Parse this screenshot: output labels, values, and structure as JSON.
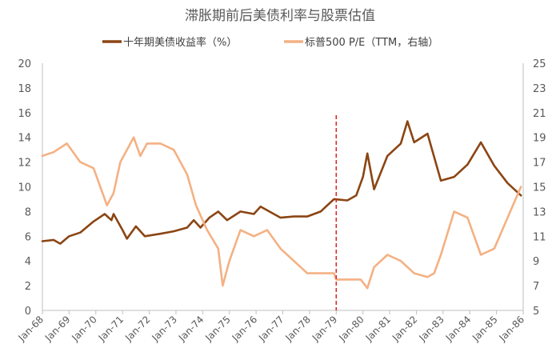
{
  "chart_data": {
    "type": "line",
    "title": "滞胀期前后美债利率与股票估值",
    "legend_position": "top",
    "grid": false,
    "x_ticks": [
      "Jan-68",
      "Jan-69",
      "Jan-70",
      "Jan-71",
      "Jan-72",
      "Jan-73",
      "Jan-74",
      "Jan-75",
      "Jan-76",
      "Jan-77",
      "Jan-78",
      "Jan-79",
      "Jan-80",
      "Jan-81",
      "Jan-82",
      "Jan-83",
      "Jan-84",
      "Jan-85",
      "Jan-86"
    ],
    "x_range": [
      "Jan-68",
      "Jan-86"
    ],
    "y_left": {
      "range": [
        0,
        20
      ],
      "ticks": [
        "0",
        "2",
        "4",
        "6",
        "8",
        "10",
        "12",
        "14",
        "16",
        "18",
        "20"
      ]
    },
    "y_right": {
      "range": [
        5,
        25
      ],
      "ticks": [
        "5",
        "7",
        "9",
        "11",
        "13",
        "15",
        "17",
        "19",
        "21",
        "23",
        "25"
      ]
    },
    "vline": {
      "x": "Jan-79",
      "color": "#e02020",
      "style": "dashed"
    },
    "series": [
      {
        "name": "十年期美债收益率（%）",
        "axis": "left",
        "color": "#8b4513",
        "points": [
          [
            "1968-01",
            5.6
          ],
          [
            "1968-06",
            5.7
          ],
          [
            "1968-09",
            5.4
          ],
          [
            "1969-01",
            6.0
          ],
          [
            "1969-06",
            6.3
          ],
          [
            "1969-12",
            7.2
          ],
          [
            "1970-05",
            7.8
          ],
          [
            "1970-08",
            7.3
          ],
          [
            "1970-09",
            7.8
          ],
          [
            "1971-01",
            6.5
          ],
          [
            "1971-03",
            5.8
          ],
          [
            "1971-07",
            6.8
          ],
          [
            "1971-11",
            6.0
          ],
          [
            "1972-06",
            6.2
          ],
          [
            "1972-12",
            6.4
          ],
          [
            "1973-06",
            6.7
          ],
          [
            "1973-09",
            7.3
          ],
          [
            "1973-12",
            6.7
          ],
          [
            "1974-04",
            7.5
          ],
          [
            "1974-08",
            8.0
          ],
          [
            "1974-12",
            7.3
          ],
          [
            "1975-06",
            8.0
          ],
          [
            "1975-12",
            7.8
          ],
          [
            "1976-03",
            8.4
          ],
          [
            "1976-12",
            7.5
          ],
          [
            "1977-06",
            7.6
          ],
          [
            "1977-12",
            7.6
          ],
          [
            "1978-06",
            8.0
          ],
          [
            "1978-12",
            9.0
          ],
          [
            "1979-06",
            8.9
          ],
          [
            "1979-10",
            9.3
          ],
          [
            "1980-01",
            10.8
          ],
          [
            "1980-03",
            12.7
          ],
          [
            "1980-06",
            9.8
          ],
          [
            "1980-12",
            12.5
          ],
          [
            "1981-06",
            13.5
          ],
          [
            "1981-09",
            15.3
          ],
          [
            "1981-12",
            13.6
          ],
          [
            "1982-06",
            14.3
          ],
          [
            "1982-12",
            10.5
          ],
          [
            "1983-06",
            10.8
          ],
          [
            "1983-12",
            11.8
          ],
          [
            "1984-06",
            13.6
          ],
          [
            "1984-12",
            11.7
          ],
          [
            "1985-06",
            10.3
          ],
          [
            "1985-12",
            9.3
          ]
        ]
      },
      {
        "name": "标普500 P/E（TTM，右轴）",
        "axis": "right",
        "color": "#f4b183",
        "points": [
          [
            "1968-01",
            17.5
          ],
          [
            "1968-06",
            17.8
          ],
          [
            "1968-12",
            18.5
          ],
          [
            "1969-06",
            17.0
          ],
          [
            "1969-12",
            16.5
          ],
          [
            "1970-06",
            13.5
          ],
          [
            "1970-09",
            14.5
          ],
          [
            "1970-12",
            17.0
          ],
          [
            "1971-06",
            19.0
          ],
          [
            "1971-09",
            17.5
          ],
          [
            "1971-12",
            18.5
          ],
          [
            "1972-06",
            18.5
          ],
          [
            "1972-12",
            18.0
          ],
          [
            "1973-06",
            16.0
          ],
          [
            "1973-10",
            13.5
          ],
          [
            "1974-03",
            11.5
          ],
          [
            "1974-08",
            10.0
          ],
          [
            "1974-10",
            7.0
          ],
          [
            "1975-01",
            9.0
          ],
          [
            "1975-06",
            11.5
          ],
          [
            "1975-12",
            11.0
          ],
          [
            "1976-06",
            11.5
          ],
          [
            "1976-12",
            10.0
          ],
          [
            "1977-06",
            9.0
          ],
          [
            "1977-12",
            8.0
          ],
          [
            "1978-06",
            8.0
          ],
          [
            "1978-12",
            8.0
          ],
          [
            "1979-01",
            7.5
          ],
          [
            "1979-06",
            7.5
          ],
          [
            "1979-12",
            7.5
          ],
          [
            "1980-03",
            6.8
          ],
          [
            "1980-06",
            8.5
          ],
          [
            "1980-12",
            9.5
          ],
          [
            "1981-06",
            9.0
          ],
          [
            "1981-12",
            8.0
          ],
          [
            "1982-06",
            7.7
          ],
          [
            "1982-09",
            8.0
          ],
          [
            "1982-12",
            9.5
          ],
          [
            "1983-06",
            13.0
          ],
          [
            "1983-12",
            12.5
          ],
          [
            "1984-06",
            9.5
          ],
          [
            "1984-12",
            10.0
          ],
          [
            "1985-06",
            12.5
          ],
          [
            "1985-12",
            15.0
          ]
        ]
      }
    ]
  }
}
